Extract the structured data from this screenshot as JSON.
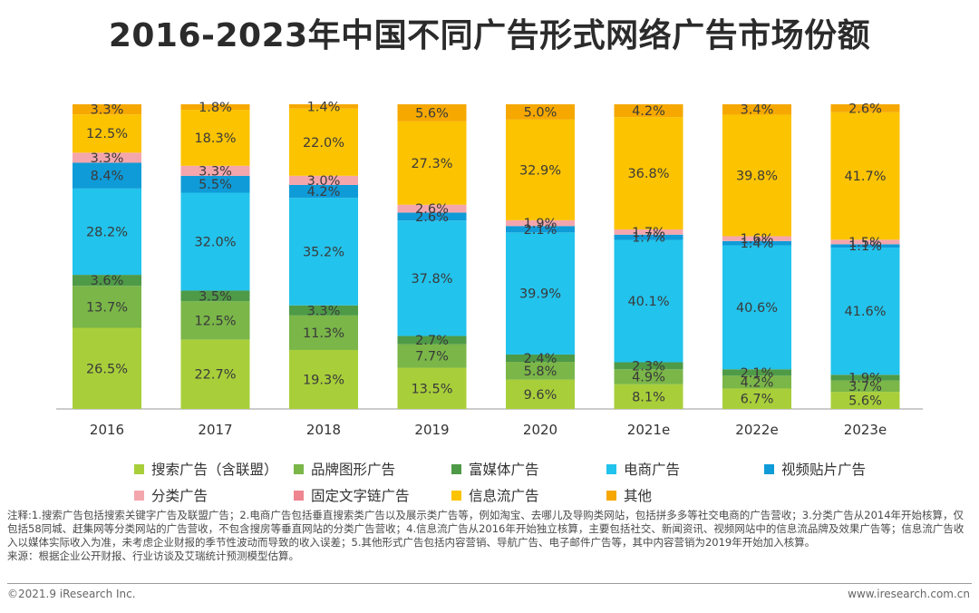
{
  "title": "2016-2023年中国不同广告形式网络广告市场份额",
  "chart_data": {
    "type": "bar",
    "stacked": true,
    "categories": [
      "2016",
      "2017",
      "2018",
      "2019",
      "2020",
      "2021e",
      "2022e",
      "2023e"
    ],
    "ylim": [
      0,
      100
    ],
    "series": [
      {
        "name": "搜索广告（含联盟）",
        "color": "#a8cf3a",
        "values": [
          26.5,
          22.7,
          19.3,
          13.5,
          9.6,
          8.1,
          6.7,
          5.6
        ]
      },
      {
        "name": "品牌图形广告",
        "color": "#7ab648",
        "values": [
          13.7,
          12.5,
          11.3,
          7.7,
          5.8,
          4.9,
          4.2,
          3.7
        ]
      },
      {
        "name": "富媒体广告",
        "color": "#4e9a47",
        "values": [
          3.6,
          3.5,
          3.3,
          2.7,
          2.4,
          2.3,
          2.1,
          1.9
        ]
      },
      {
        "name": "电商广告",
        "color": "#22c3ec",
        "values": [
          28.2,
          32.0,
          35.2,
          37.8,
          39.9,
          40.1,
          40.6,
          41.6
        ]
      },
      {
        "name": "视频贴片广告",
        "color": "#0f9bd8",
        "values": [
          8.4,
          5.5,
          4.2,
          2.6,
          2.1,
          1.7,
          1.4,
          1.1
        ]
      },
      {
        "name": "分类广告",
        "color": "#f4a6ad",
        "values": [
          3.3,
          3.3,
          3.0,
          2.6,
          1.9,
          1.7,
          1.6,
          1.5
        ]
      },
      {
        "name": "固定文字链广告",
        "color": "#ee858f",
        "values": [
          0.0,
          0.0,
          0.0,
          0.0,
          0.0,
          0.0,
          0.0,
          0.0
        ]
      },
      {
        "name": "信息流广告",
        "color": "#fcc300",
        "values": [
          12.5,
          18.3,
          22.0,
          27.3,
          32.9,
          36.8,
          39.8,
          41.7
        ]
      },
      {
        "name": "其他",
        "color": "#f6a800",
        "values": [
          3.3,
          1.8,
          1.4,
          5.6,
          5.0,
          4.2,
          3.4,
          2.6
        ]
      }
    ]
  },
  "notes": {
    "line1": "注释:1.搜索广告包括搜索关键字广告及联盟广告；2.电商广告包括垂直搜索类广告以及展示类广告等，例如淘宝、去哪儿及导购类网站，包括拼多多等社交电商的广告营收；3.分类广告从2014年开始核算，仅包括58同城、赶集网等分类网站的广告营收，不包含搜房等垂直网站的分类广告营收；4.信息流广告从2016年开始独立核算，主要包括社交、新闻资讯、视频网站中的信息流品牌及效果广告等；信息流广告收入以媒体实际收入为准，未考虑企业财报的季节性波动而导致的收入误差；5.其他形式广告包括内容营销、导航广告、电子邮件广告等，其中内容营销为2019年开始加入核算。",
    "line2": "来源：根据企业公开财报、行业访谈及艾瑞统计预测模型估算。"
  },
  "footer": {
    "copyright": "©2021.9 iResearch Inc.",
    "website": "www.iresearch.com.cn"
  }
}
